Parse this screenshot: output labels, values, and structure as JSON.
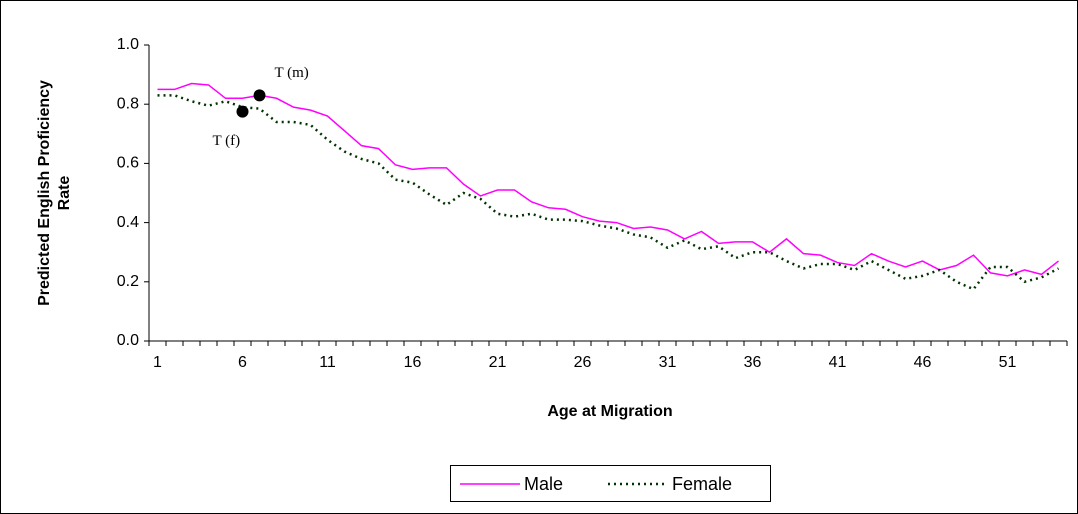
{
  "chart_data": {
    "type": "line",
    "y_label": [
      "Predicted English Proficiency",
      "Rate"
    ],
    "x_label": "Age at Migration",
    "categories": [
      1,
      null,
      null,
      null,
      null,
      6,
      null,
      null,
      null,
      null,
      11,
      null,
      null,
      null,
      null,
      16,
      null,
      null,
      null,
      null,
      21,
      null,
      null,
      null,
      null,
      26,
      null,
      null,
      null,
      null,
      31,
      null,
      null,
      null,
      null,
      36,
      null,
      null,
      null,
      null,
      41,
      null,
      null,
      null,
      null,
      46,
      null,
      null,
      null,
      null,
      51,
      null,
      null,
      null
    ],
    "series": [
      {
        "name": "Male",
        "color": "#ff00ff",
        "dash": "solid",
        "values": [
          0.85,
          0.85,
          0.87,
          0.865,
          0.82,
          0.82,
          0.83,
          0.82,
          0.79,
          0.78,
          0.76,
          0.71,
          0.66,
          0.65,
          0.595,
          0.58,
          0.585,
          0.585,
          0.53,
          0.49,
          0.51,
          0.51,
          0.47,
          0.45,
          0.445,
          0.42,
          0.405,
          0.4,
          0.38,
          0.385,
          0.375,
          0.345,
          0.37,
          0.33,
          0.335,
          0.335,
          0.3,
          0.345,
          0.295,
          0.29,
          0.265,
          0.255,
          0.295,
          0.27,
          0.25,
          0.27,
          0.24,
          0.255,
          0.29,
          0.23,
          0.22,
          0.24,
          0.225,
          0.27
        ]
      },
      {
        "name": "Female",
        "color": "#003300",
        "dash": "dotted",
        "values": [
          0.83,
          0.83,
          0.81,
          0.795,
          0.81,
          0.79,
          0.785,
          0.74,
          0.74,
          0.73,
          0.68,
          0.64,
          0.615,
          0.6,
          0.545,
          0.535,
          0.495,
          0.46,
          0.5,
          0.48,
          0.43,
          0.42,
          0.43,
          0.41,
          0.41,
          0.405,
          0.39,
          0.38,
          0.36,
          0.35,
          0.315,
          0.34,
          0.31,
          0.32,
          0.28,
          0.3,
          0.3,
          0.27,
          0.245,
          0.26,
          0.26,
          0.24,
          0.27,
          0.24,
          0.21,
          0.22,
          0.24,
          0.2,
          0.175,
          0.25,
          0.25,
          0.2,
          0.215,
          0.245
        ]
      }
    ],
    "points": [
      {
        "label": "T (m)",
        "x": 7,
        "y": 0.83
      },
      {
        "label": "T (f)",
        "x": 6,
        "y": 0.775
      }
    ],
    "ylim": [
      0,
      1
    ],
    "yticks": [
      {
        "value": 0,
        "label": "0.0"
      },
      0.2,
      0.4,
      0.6,
      0.8,
      {
        "value": 1,
        "label": "1.0"
      }
    ],
    "legend": "bottom"
  }
}
